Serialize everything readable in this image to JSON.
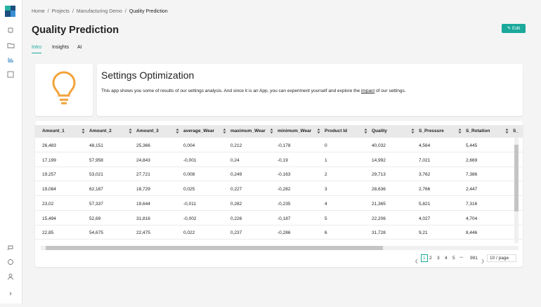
{
  "breadcrumb": {
    "items": [
      "Home",
      "Projects",
      "Manufacturing Demo",
      "Quality Prediction"
    ],
    "separator": "/"
  },
  "header": {
    "title": "Quality Prediction",
    "edit_button": "Edit"
  },
  "tabs": [
    "Intro",
    "Insights",
    "AI"
  ],
  "intro": {
    "title": "Settings Optimization",
    "text_before": "This app shows you some of results of our settings analysis. And since it is an App, you can experiment yourself and explore the ",
    "text_link": "impact",
    "text_after": " of our settings."
  },
  "table": {
    "columns": [
      "Amount_1",
      "Amount_2",
      "Amount_3",
      "average_Wear",
      "maximum_Wear",
      "minimum_Wear",
      "Product Id",
      "Quality",
      "S_Pressure",
      "S_Rotation",
      "S_"
    ],
    "rows": [
      [
        "26,483",
        "48,151",
        "25,366",
        "0,004",
        "0,212",
        "-0,178",
        "0",
        "40,032",
        "4,564",
        "5,445"
      ],
      [
        "17,199",
        "57,958",
        "24,843",
        "-0,001",
        "0,24",
        "-0,19",
        "1",
        "14,992",
        "7,021",
        "2,669"
      ],
      [
        "19,257",
        "53,021",
        "27,721",
        "0,008",
        "0,249",
        "-0,163",
        "2",
        "29,713",
        "3,762",
        "7,386"
      ],
      [
        "19,084",
        "62,187",
        "18,729",
        "0,025",
        "0,227",
        "-0,282",
        "3",
        "28,636",
        "2,766",
        "2,447"
      ],
      [
        "23,02",
        "57,337",
        "19,644",
        "-0,011",
        "0,282",
        "-0,235",
        "4",
        "21,365",
        "5,821",
        "7,316"
      ],
      [
        "15,494",
        "52,69",
        "31,816",
        "-0,002",
        "0,226",
        "-0,187",
        "5",
        "22,206",
        "4,027",
        "4,704"
      ],
      [
        "22,85",
        "54,675",
        "22,475",
        "0,022",
        "0,237",
        "-0,286",
        "6",
        "31,728",
        "9,21",
        "8,446"
      ]
    ]
  },
  "pagination": {
    "pages": [
      "1",
      "2",
      "3",
      "4",
      "5"
    ],
    "ellipsis": "•••",
    "last": "981",
    "page_size": "10 / page"
  }
}
